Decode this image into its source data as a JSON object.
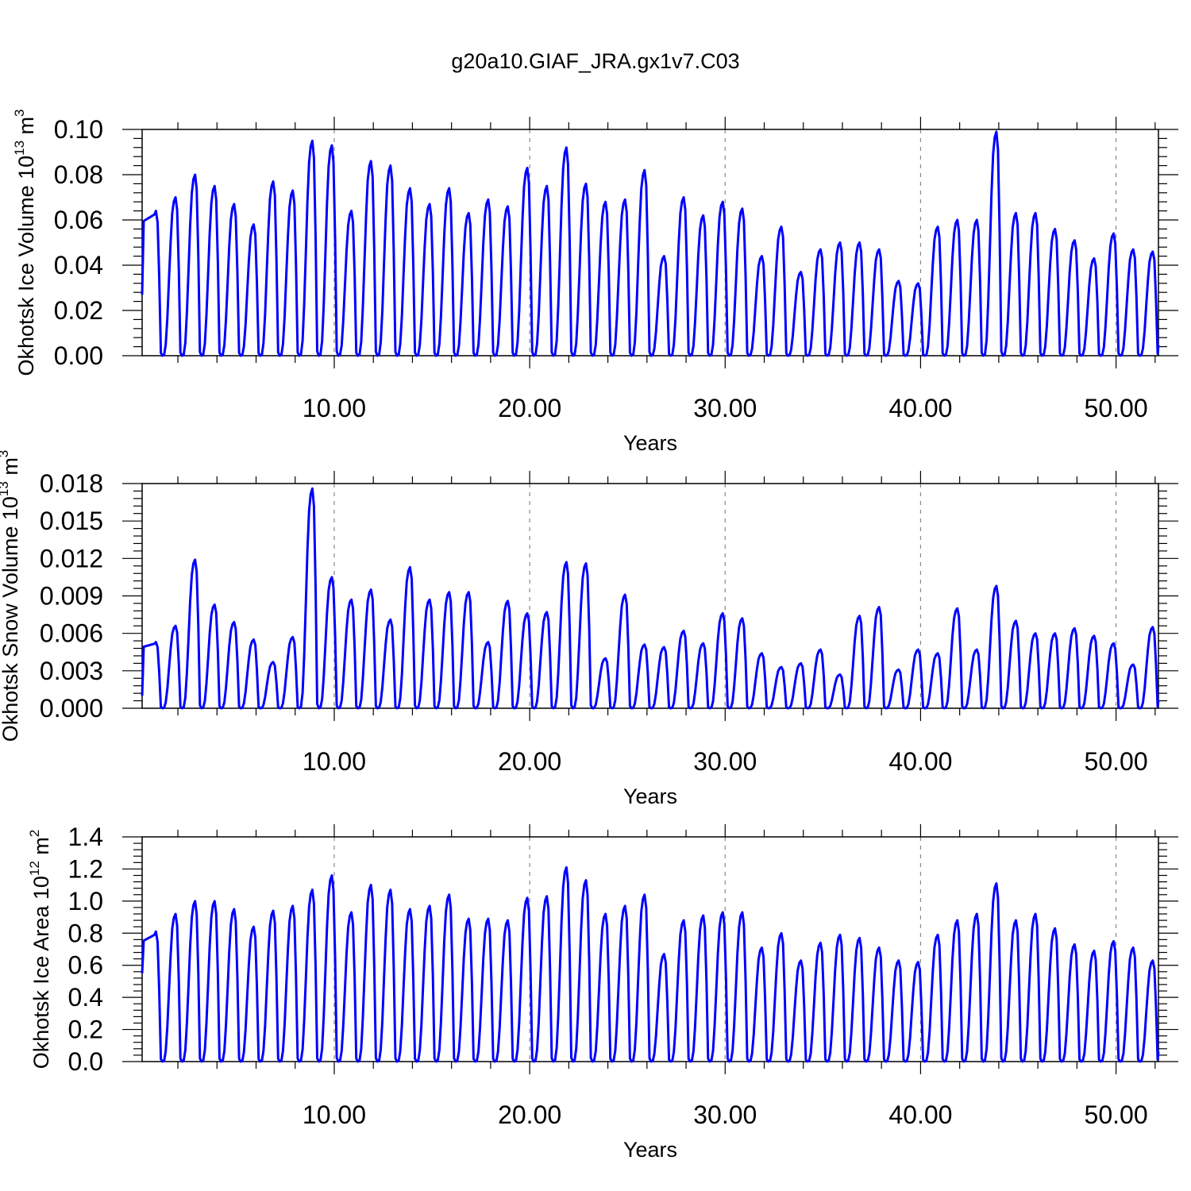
{
  "title": "g20a10.GIAF_JRA.gx1v7.C03",
  "line_color": "#0000ff",
  "chart_data": [
    {
      "type": "line",
      "ylabel_main": "Okhotsk Ice Volume 10",
      "ylabel_exp": "13",
      "ylabel_unit": " m",
      "ylabel_unit_exp": "3",
      "xlabel": "Years",
      "xlim": [
        0.17,
        52.17
      ],
      "ylim": [
        0,
        0.1
      ],
      "xticks": [
        10,
        20,
        30,
        40,
        50
      ],
      "xtick_labels": [
        "10.00",
        "20.00",
        "30.00",
        "40.00",
        "50.00"
      ],
      "yticks": [
        0,
        0.02,
        0.04,
        0.06,
        0.08,
        0.1
      ],
      "ytick_labels": [
        "0.00",
        "0.02",
        "0.04",
        "0.06",
        "0.08",
        "0.10"
      ],
      "grid": "x-dashed",
      "first_value": 0.027,
      "peaks": [
        0.064,
        0.07,
        0.08,
        0.075,
        0.067,
        0.058,
        0.077,
        0.073,
        0.095,
        0.093,
        0.064,
        0.086,
        0.084,
        0.074,
        0.067,
        0.074,
        0.063,
        0.069,
        0.066,
        0.083,
        0.075,
        0.092,
        0.076,
        0.068,
        0.069,
        0.082,
        0.044,
        0.07,
        0.062,
        0.068,
        0.065,
        0.044,
        0.057,
        0.037,
        0.047,
        0.05,
        0.05,
        0.047,
        0.033,
        0.032,
        0.057,
        0.06,
        0.06,
        0.099,
        0.063,
        0.063,
        0.056,
        0.051,
        0.043,
        0.054,
        0.047,
        0.046
      ]
    },
    {
      "type": "line",
      "ylabel_main": "Okhotsk Snow Volume 10",
      "ylabel_exp": "13",
      "ylabel_unit": " m",
      "ylabel_unit_exp": "3",
      "xlabel": "Years",
      "xlim": [
        0.17,
        52.17
      ],
      "ylim": [
        0,
        0.018
      ],
      "xticks": [
        10,
        20,
        30,
        40,
        50
      ],
      "xtick_labels": [
        "10.00",
        "20.00",
        "30.00",
        "40.00",
        "50.00"
      ],
      "yticks": [
        0,
        0.003,
        0.006,
        0.009,
        0.012,
        0.015,
        0.018
      ],
      "ytick_labels": [
        "0.000",
        "0.003",
        "0.006",
        "0.009",
        "0.012",
        "0.015",
        "0.018"
      ],
      "grid": "x-dashed",
      "first_value": 0.001,
      "peaks": [
        0.0053,
        0.0066,
        0.0119,
        0.0083,
        0.0069,
        0.0055,
        0.0037,
        0.0057,
        0.0176,
        0.0105,
        0.0087,
        0.0095,
        0.0071,
        0.0113,
        0.0087,
        0.0093,
        0.0093,
        0.0053,
        0.0086,
        0.0076,
        0.0077,
        0.0117,
        0.0116,
        0.004,
        0.0091,
        0.0051,
        0.0049,
        0.0062,
        0.0052,
        0.0076,
        0.0072,
        0.0044,
        0.0033,
        0.0036,
        0.0047,
        0.0027,
        0.0074,
        0.0081,
        0.0031,
        0.0047,
        0.0044,
        0.008,
        0.0047,
        0.0098,
        0.007,
        0.006,
        0.006,
        0.0064,
        0.0058,
        0.0052,
        0.0035,
        0.0065
      ]
    },
    {
      "type": "line",
      "ylabel_main": "Okhotsk Ice Area 10",
      "ylabel_exp": "12",
      "ylabel_unit": " m",
      "ylabel_unit_exp": "2",
      "xlabel": "Years",
      "xlim": [
        0.17,
        52.17
      ],
      "ylim": [
        0,
        1.4
      ],
      "xticks": [
        10,
        20,
        30,
        40,
        50
      ],
      "xtick_labels": [
        "10.00",
        "20.00",
        "30.00",
        "40.00",
        "50.00"
      ],
      "yticks": [
        0,
        0.2,
        0.4,
        0.6,
        0.8,
        1.0,
        1.2,
        1.4
      ],
      "ytick_labels": [
        "0.0",
        "0.2",
        "0.4",
        "0.6",
        "0.8",
        "1.0",
        "1.2",
        "1.4"
      ],
      "grid": "x-dashed",
      "first_value": 0.55,
      "peaks": [
        0.81,
        0.92,
        1.0,
        1.0,
        0.95,
        0.84,
        0.94,
        0.97,
        1.07,
        1.16,
        0.93,
        1.1,
        1.07,
        0.95,
        0.97,
        1.04,
        0.89,
        0.89,
        0.88,
        1.02,
        1.03,
        1.21,
        1.13,
        0.92,
        0.97,
        1.04,
        0.67,
        0.88,
        0.91,
        0.93,
        0.93,
        0.71,
        0.8,
        0.63,
        0.74,
        0.79,
        0.77,
        0.71,
        0.63,
        0.62,
        0.79,
        0.88,
        0.92,
        1.11,
        0.88,
        0.92,
        0.83,
        0.73,
        0.69,
        0.75,
        0.71,
        0.63
      ]
    }
  ]
}
